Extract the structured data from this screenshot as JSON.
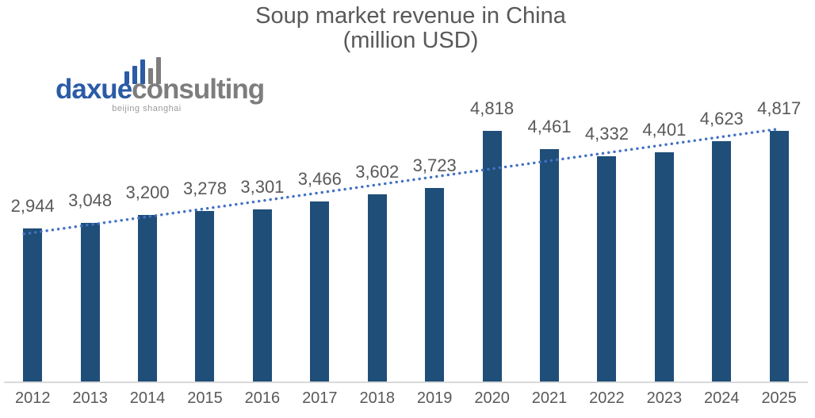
{
  "page": {
    "background": "#FFFFFF"
  },
  "logo": {
    "brand_primary": "daxue",
    "brand_secondary": "consulting",
    "tagline": "beijing shanghai",
    "icon": "bar-chart-logo-icon",
    "brand_primary_color": "#2B5BA5",
    "brand_secondary_color": "#7D7D7D"
  },
  "chart_data": {
    "type": "bar",
    "title": "Soup market revenue in China (million USD)",
    "title_lines": [
      "Soup market revenue in China",
      "(million USD)"
    ],
    "categories": [
      "2012",
      "2013",
      "2014",
      "2015",
      "2016",
      "2017",
      "2018",
      "2019",
      "2020",
      "2021",
      "2022",
      "2023",
      "2024",
      "2025"
    ],
    "values": [
      2944,
      3048,
      3200,
      3278,
      3301,
      3466,
      3602,
      3723,
      4818,
      4461,
      4332,
      4401,
      4623,
      4817
    ],
    "value_labels": [
      "2,944",
      "3,048",
      "3,200",
      "3,278",
      "3,301",
      "3,466",
      "3,602",
      "3,723",
      "4,818",
      "4,461",
      "4,332",
      "4,401",
      "4,623",
      "4,817"
    ],
    "xlabel": "",
    "ylabel": "",
    "ylim": [
      0,
      5000
    ],
    "gridlines": false,
    "y_axis_visible": false,
    "legend": "none",
    "bar_color": "#1F4E79",
    "data_label_color": "#595959",
    "axis_label_color": "#595959",
    "title_color": "#595959",
    "axis_line_color": "#D9D9D9",
    "trendline": {
      "type": "linear",
      "style": "dotted",
      "color": "#4472C4"
    }
  }
}
